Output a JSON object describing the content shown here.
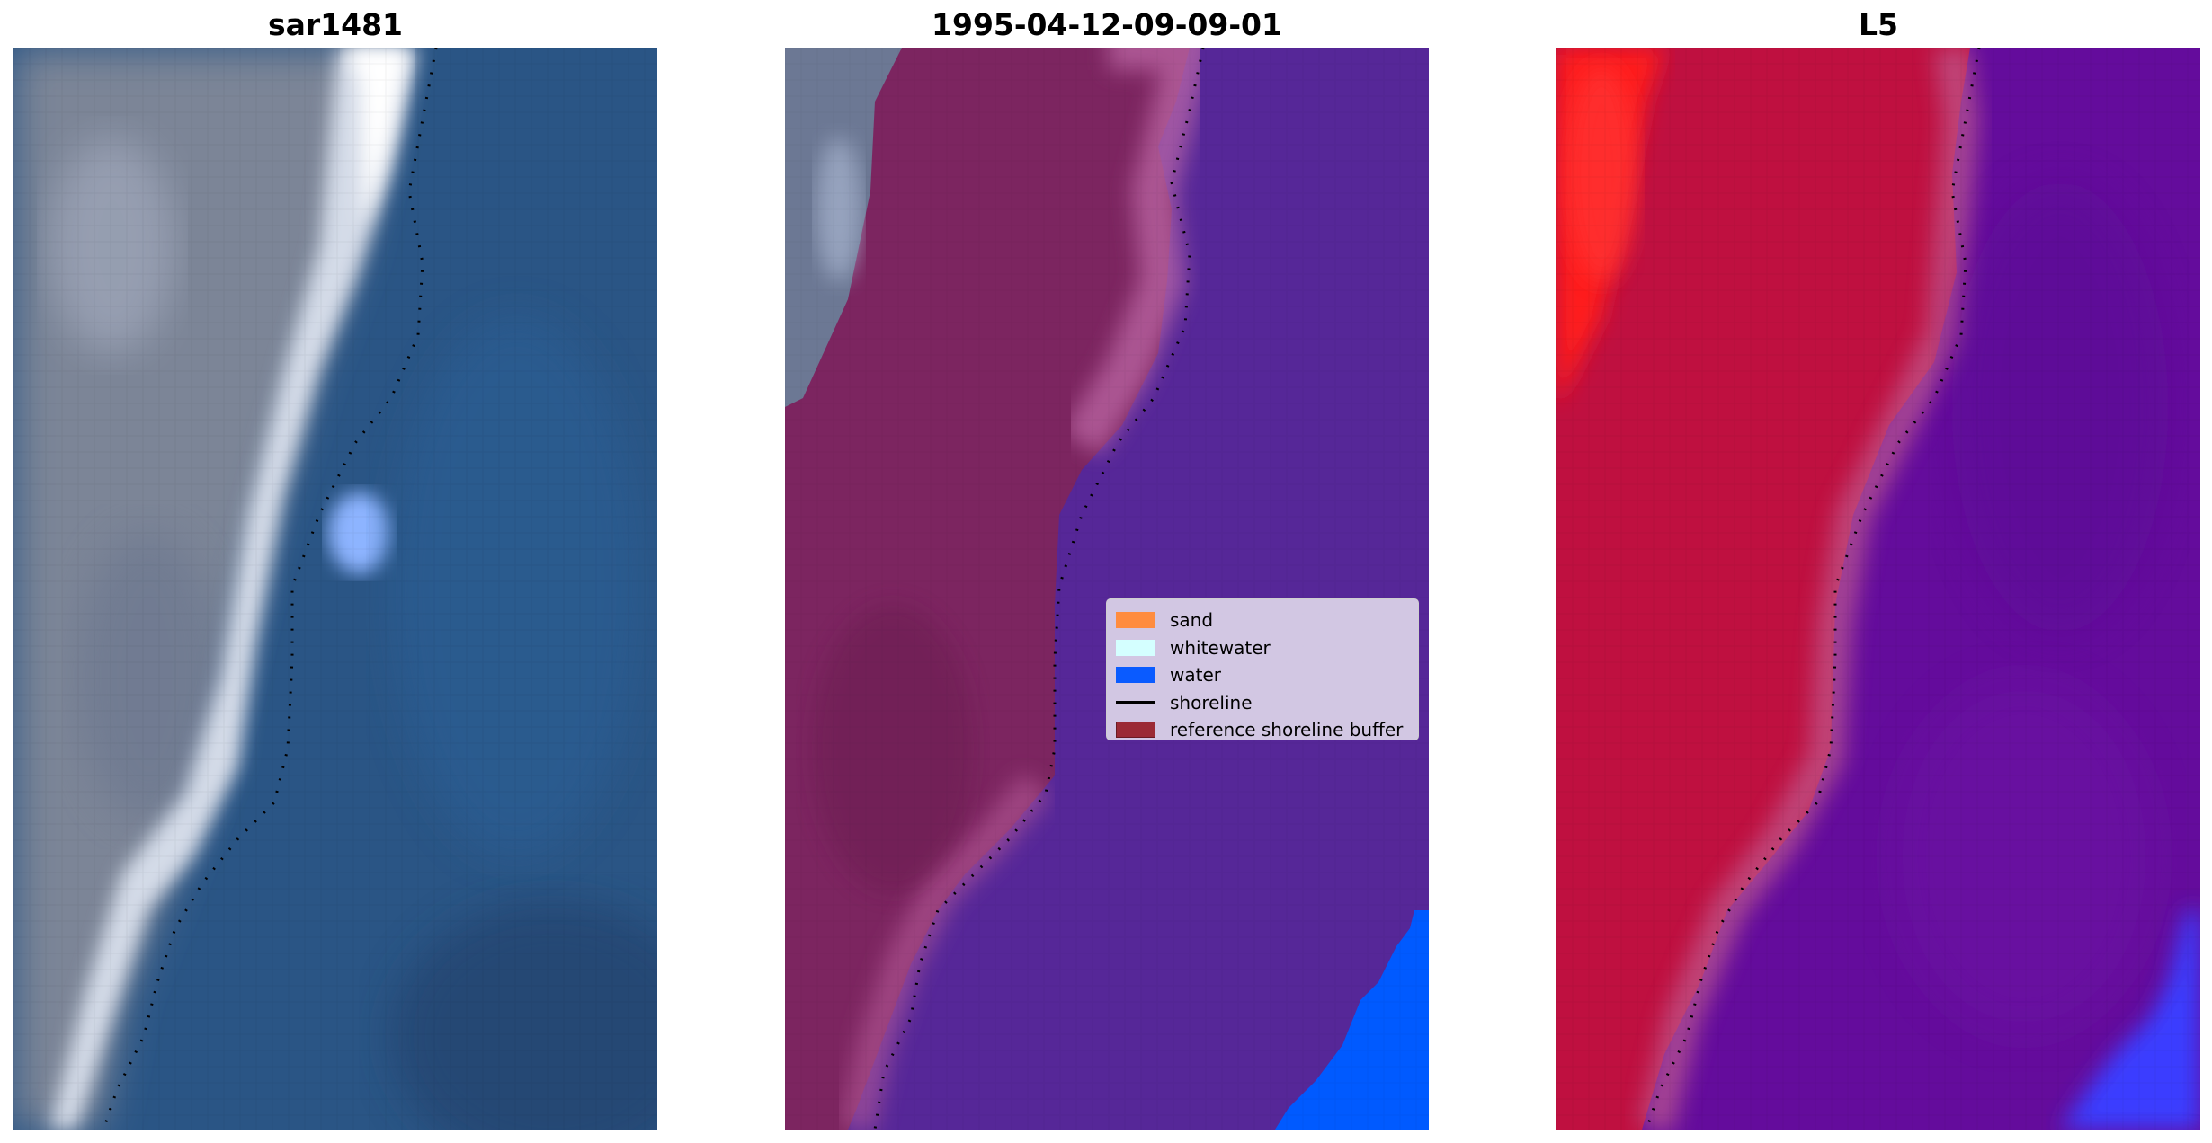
{
  "panels": [
    {
      "title": "sar1481",
      "image": "rgb-satellite-image"
    },
    {
      "title": "1995-04-12-09-09-01",
      "image": "classified-image-overlay"
    },
    {
      "title": "L5",
      "image": "false-color-band-image"
    }
  ],
  "legend": {
    "items": [
      {
        "label": "sand",
        "color": "#ff8c3f",
        "kind": "patch"
      },
      {
        "label": "whitewater",
        "color": "#d4ffff",
        "kind": "patch"
      },
      {
        "label": "water",
        "color": "#0a5bff",
        "kind": "patch"
      },
      {
        "label": "shoreline",
        "color": "#000000",
        "kind": "line"
      },
      {
        "label": "reference shoreline buffer",
        "color": "#9b2a35",
        "kind": "patch"
      }
    ]
  },
  "colors": {
    "panel1_land": "#7f8796",
    "panel1_water": "#285c8f",
    "panel1_whitewater": "#eef4fb",
    "panel2_buffer": "#7c2560",
    "panel2_water": "#562798",
    "panel2_bright_water": "#005aff",
    "panel3_red": "#bf1040",
    "panel3_purple": "#640c9c",
    "panel3_blue": "#3a3cff"
  }
}
